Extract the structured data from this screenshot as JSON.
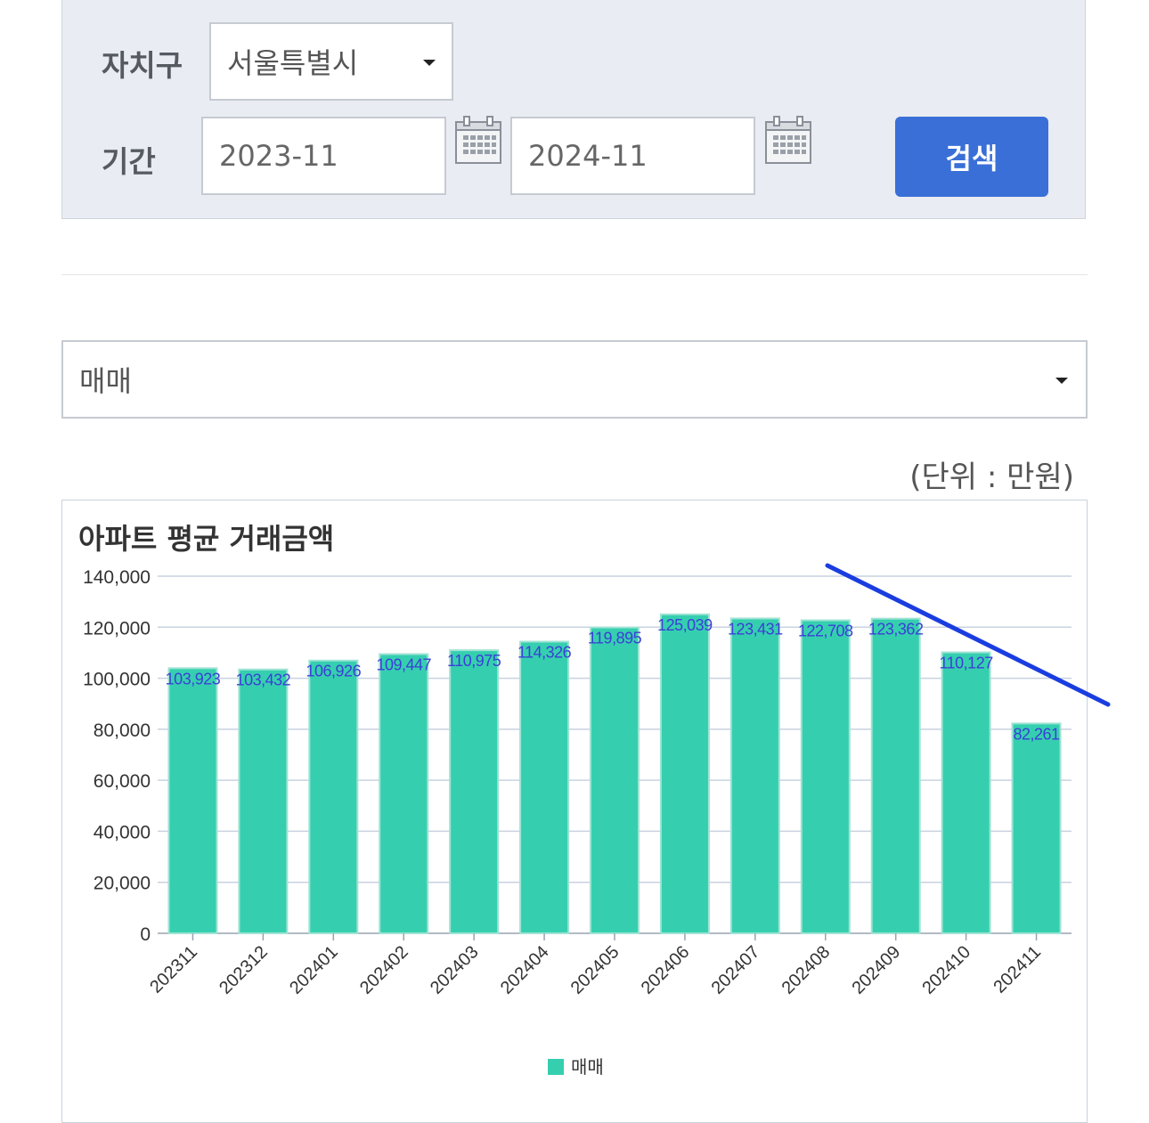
{
  "filters": {
    "district_label": "자치구",
    "district_value": "서울특별시",
    "period_label": "기간",
    "start_value": "2023-11",
    "end_value": "2024-11",
    "search_label": "검색"
  },
  "trade_type": {
    "value": "매매"
  },
  "unit_text": "(단위 : 만원)",
  "colors": {
    "bar": "#35cfb0",
    "label": "#3b3fd6",
    "accent": "#3a6fd8",
    "annotation": "#1a3de0"
  },
  "chart_data": {
    "type": "bar",
    "title": "아파트 평균 거래금액",
    "categories": [
      "202311",
      "202312",
      "202401",
      "202402",
      "202403",
      "202404",
      "202405",
      "202406",
      "202407",
      "202408",
      "202409",
      "202410",
      "202411"
    ],
    "series": [
      {
        "name": "매매",
        "values": [
          103923,
          103432,
          106926,
          109447,
          110975,
          114326,
          119895,
          125039,
          123431,
          122708,
          123362,
          110127,
          82261
        ]
      }
    ],
    "value_labels": [
      "103,923",
      "103,432",
      "106,926",
      "109,447",
      "110,975",
      "114,326",
      "119,895",
      "125,039",
      "123,431",
      "122,708",
      "123,362",
      "110,127",
      "82,261"
    ],
    "ylim": [
      0,
      140000
    ],
    "yticks": [
      0,
      20000,
      40000,
      60000,
      80000,
      100000,
      120000,
      140000
    ],
    "ytick_labels": [
      "0",
      "20,000",
      "40,000",
      "60,000",
      "80,000",
      "100,000",
      "120,000",
      "140,000"
    ],
    "grid": true,
    "legend_position": "bottom-center"
  }
}
